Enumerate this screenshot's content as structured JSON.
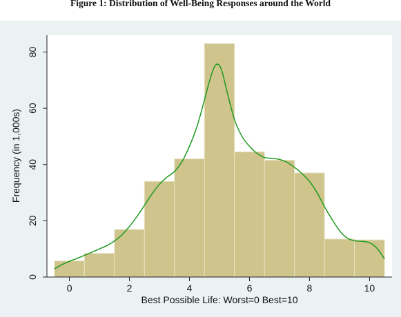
{
  "figure": {
    "title": "Figure 1: Distribution of Well-Being Responses around the World"
  },
  "colors": {
    "panel_background": "#eaf2f3",
    "plot_background": "#ffffff",
    "bar_fill": "#cec48c",
    "bar_edge": "#e8e2c2",
    "density_line": "#1f9a1f",
    "axis": "#222222"
  },
  "chart_data": {
    "type": "bar",
    "subtype": "histogram_with_density",
    "title": "",
    "xlabel": "Best Possible Life: Worst=0 Best=10",
    "ylabel": "Frequency (in 1,000s)",
    "xlim": [
      -0.75,
      10.75
    ],
    "ylim": [
      0,
      86
    ],
    "x_ticks": [
      0,
      2,
      4,
      6,
      8,
      10
    ],
    "y_ticks": [
      0,
      20,
      40,
      60,
      80
    ],
    "grid": false,
    "legend": "none",
    "categories": [
      "0",
      "1",
      "2",
      "3",
      "4",
      "5",
      "6",
      "7",
      "8",
      "9",
      "10"
    ],
    "bin_width": 1,
    "values": [
      5.7,
      8.4,
      16.9,
      34,
      42,
      83,
      44.5,
      41.5,
      37,
      13.5,
      13.2
    ],
    "density_curve": {
      "x": [
        -0.5,
        -0.25,
        0,
        0.25,
        0.5,
        0.75,
        1,
        1.25,
        1.5,
        1.75,
        2,
        2.25,
        2.5,
        2.75,
        3,
        3.25,
        3.5,
        3.75,
        4,
        4.25,
        4.5,
        4.65,
        4.8,
        4.9,
        5,
        5.1,
        5.25,
        5.5,
        5.75,
        6,
        6.25,
        6.5,
        6.75,
        7,
        7.25,
        7.5,
        7.75,
        8,
        8.25,
        8.5,
        8.75,
        9,
        9.25,
        9.5,
        9.75,
        10,
        10.25,
        10.5
      ],
      "y": [
        2.9,
        4.4,
        5.6,
        6.6,
        7.7,
        8.8,
        10,
        11.2,
        12.8,
        15,
        18,
        21.5,
        25.5,
        29.5,
        33,
        35.5,
        37.5,
        41,
        46.5,
        53.5,
        63,
        69,
        74,
        75.6,
        75.2,
        72.5,
        66,
        56,
        50,
        46.5,
        44,
        42.5,
        42.2,
        41.8,
        40.8,
        39,
        36.8,
        34,
        30,
        25,
        20.5,
        16.5,
        13.9,
        12.9,
        12.7,
        12.2,
        10.2,
        6.4
      ]
    }
  }
}
